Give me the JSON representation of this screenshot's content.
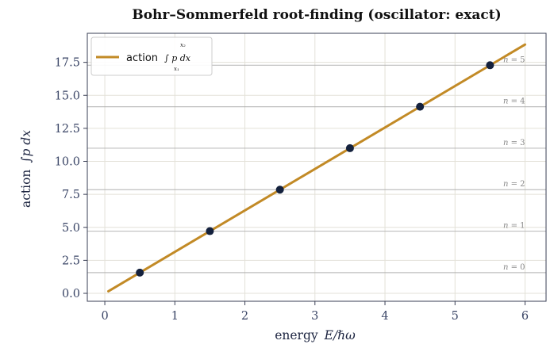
{
  "chart_data": {
    "type": "line",
    "title": "Bohr–Sommerfeld root-finding (oscillator: exact)",
    "xlabel_text": "energy",
    "xlabel_symbol": "E/ℏω",
    "ylabel_text": "action",
    "ylabel_symbol": "∫p dx",
    "xlim": [
      -0.25,
      6.3
    ],
    "ylim": [
      -0.6,
      19.7
    ],
    "xticks": [
      0,
      1,
      2,
      3,
      4,
      5,
      6
    ],
    "yticks": [
      0.0,
      2.5,
      5.0,
      7.5,
      10.0,
      12.5,
      15.0,
      17.5
    ],
    "ytick_labels": [
      "0.0",
      "2.5",
      "5.0",
      "7.5",
      "10.0",
      "12.5",
      "15.0",
      "17.5"
    ],
    "grid": true,
    "legend": {
      "placement": "top-left",
      "label": "action",
      "math": "∫ p dx",
      "lower_limit": "x₁",
      "upper_limit": "x₂"
    },
    "series": [
      {
        "color": "#c28a26",
        "x": [
          0.05,
          6.0
        ],
        "y": [
          0.157,
          18.85
        ]
      }
    ],
    "roots": {
      "color": "#14213d",
      "x": [
        0.5,
        1.5,
        2.5,
        3.5,
        4.5,
        5.5
      ],
      "y": [
        1.571,
        4.712,
        7.854,
        10.996,
        14.137,
        17.279
      ]
    },
    "levels": [
      {
        "n": "n = 0",
        "y": 1.571
      },
      {
        "n": "n = 1",
        "y": 4.712
      },
      {
        "n": "n = 2",
        "y": 7.854
      },
      {
        "n": "n = 3",
        "y": 10.996
      },
      {
        "n": "n = 4",
        "y": 14.137
      },
      {
        "n": "n = 5",
        "y": 17.279
      }
    ]
  }
}
